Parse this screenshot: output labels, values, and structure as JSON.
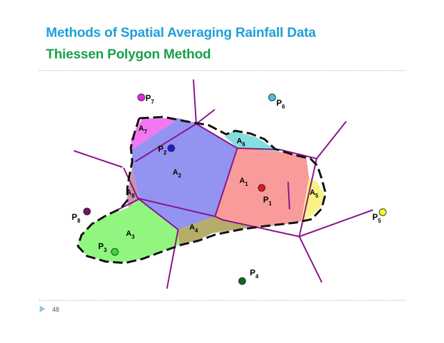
{
  "header": {
    "title": "Methods of Spatial Averaging Rainfall Data",
    "subtitle": "Thiessen Polygon Method"
  },
  "footer": {
    "page_number": "48"
  },
  "colors": {
    "title": "#1ea0d8",
    "subtitle": "#1aa04a",
    "polygon_edges": "#8a138a",
    "A1": "#f98a8a",
    "A2": "#8080ee",
    "A3": "#7ef56a",
    "A4": "#a8a050",
    "A5": "#f8f070",
    "A6": "#70d8d8",
    "A7": "#f060f0",
    "A8": "#c080a0"
  },
  "stations": [
    {
      "base": "P",
      "sub": "1",
      "color": "#ee1111"
    },
    {
      "base": "P",
      "sub": "2",
      "color": "#1a1ae0"
    },
    {
      "base": "P",
      "sub": "3",
      "color": "#33dd33"
    },
    {
      "base": "P",
      "sub": "4",
      "color": "#0a6a1a"
    },
    {
      "base": "P",
      "sub": "5",
      "color": "#f8f820"
    },
    {
      "base": "P",
      "sub": "6",
      "color": "#44c8d8"
    },
    {
      "base": "P",
      "sub": "7",
      "color": "#f020f0"
    },
    {
      "base": "P",
      "sub": "8",
      "color": "#7a1060"
    }
  ],
  "areas": [
    {
      "base": "A",
      "sub": "1"
    },
    {
      "base": "A",
      "sub": "2"
    },
    {
      "base": "A",
      "sub": "3"
    },
    {
      "base": "A",
      "sub": "4"
    },
    {
      "base": "A",
      "sub": "5"
    },
    {
      "base": "A",
      "sub": "6"
    },
    {
      "base": "A",
      "sub": "7"
    },
    {
      "base": "A",
      "sub": "8"
    }
  ]
}
